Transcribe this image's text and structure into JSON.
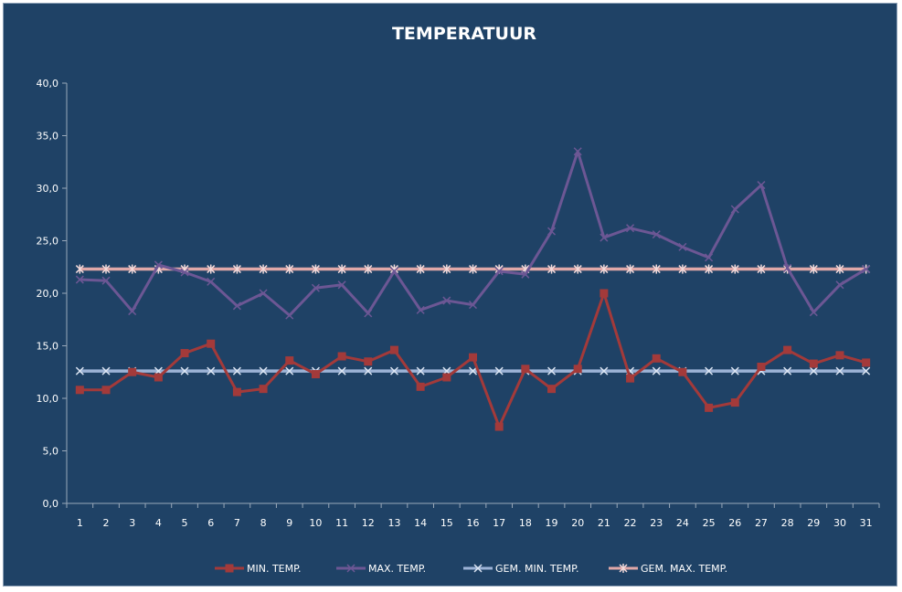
{
  "chart_data": {
    "type": "line",
    "title": "TEMPERATUUR",
    "x": [
      1,
      2,
      3,
      4,
      5,
      6,
      7,
      8,
      9,
      10,
      11,
      12,
      13,
      14,
      15,
      16,
      17,
      18,
      19,
      20,
      21,
      22,
      23,
      24,
      25,
      26,
      27,
      28,
      29,
      30,
      31
    ],
    "y_ticks": [
      "0,0",
      "5,0",
      "10,0",
      "15,0",
      "20,0",
      "25,0",
      "30,0",
      "35,0",
      "40,0"
    ],
    "ylim": [
      0,
      40
    ],
    "grid": false,
    "legend_position": "bottom",
    "series": [
      {
        "name": "MIN. TEMP.",
        "color": "#a33a3a",
        "marker": "square",
        "values": [
          10.8,
          10.8,
          12.5,
          12.0,
          14.3,
          15.2,
          10.6,
          10.9,
          13.6,
          12.3,
          14.0,
          13.5,
          14.6,
          11.1,
          12.0,
          13.9,
          7.3,
          12.8,
          10.9,
          12.8,
          20.0,
          11.9,
          13.8,
          12.5,
          9.1,
          9.6,
          13.0,
          14.6,
          13.3,
          14.1,
          13.4
        ]
      },
      {
        "name": "MAX. TEMP.",
        "color": "#6c5794",
        "marker": "x",
        "values": [
          21.3,
          21.2,
          18.3,
          22.7,
          22.0,
          21.1,
          18.8,
          20.0,
          17.9,
          20.5,
          20.8,
          18.1,
          22.1,
          18.4,
          19.3,
          18.9,
          22.1,
          21.8,
          25.9,
          33.5,
          25.3,
          26.2,
          25.6,
          24.4,
          23.4,
          28.0,
          30.3,
          22.4,
          18.2,
          20.8,
          22.3
        ]
      },
      {
        "name": "GEM. MIN. TEMP.",
        "color": "#9cb3d6",
        "marker": "x",
        "values": [
          12.6,
          12.6,
          12.6,
          12.6,
          12.6,
          12.6,
          12.6,
          12.6,
          12.6,
          12.6,
          12.6,
          12.6,
          12.6,
          12.6,
          12.6,
          12.6,
          12.6,
          12.6,
          12.6,
          12.6,
          12.6,
          12.6,
          12.6,
          12.6,
          12.6,
          12.6,
          12.6,
          12.6,
          12.6,
          12.6,
          12.6
        ]
      },
      {
        "name": "GEM. MAX. TEMP.",
        "color": "#e0a8a8",
        "marker": "star",
        "values": [
          22.3,
          22.3,
          22.3,
          22.3,
          22.3,
          22.3,
          22.3,
          22.3,
          22.3,
          22.3,
          22.3,
          22.3,
          22.3,
          22.3,
          22.3,
          22.3,
          22.3,
          22.3,
          22.3,
          22.3,
          22.3,
          22.3,
          22.3,
          22.3,
          22.3,
          22.3,
          22.3,
          22.3,
          22.3,
          22.3,
          22.3
        ]
      }
    ]
  }
}
